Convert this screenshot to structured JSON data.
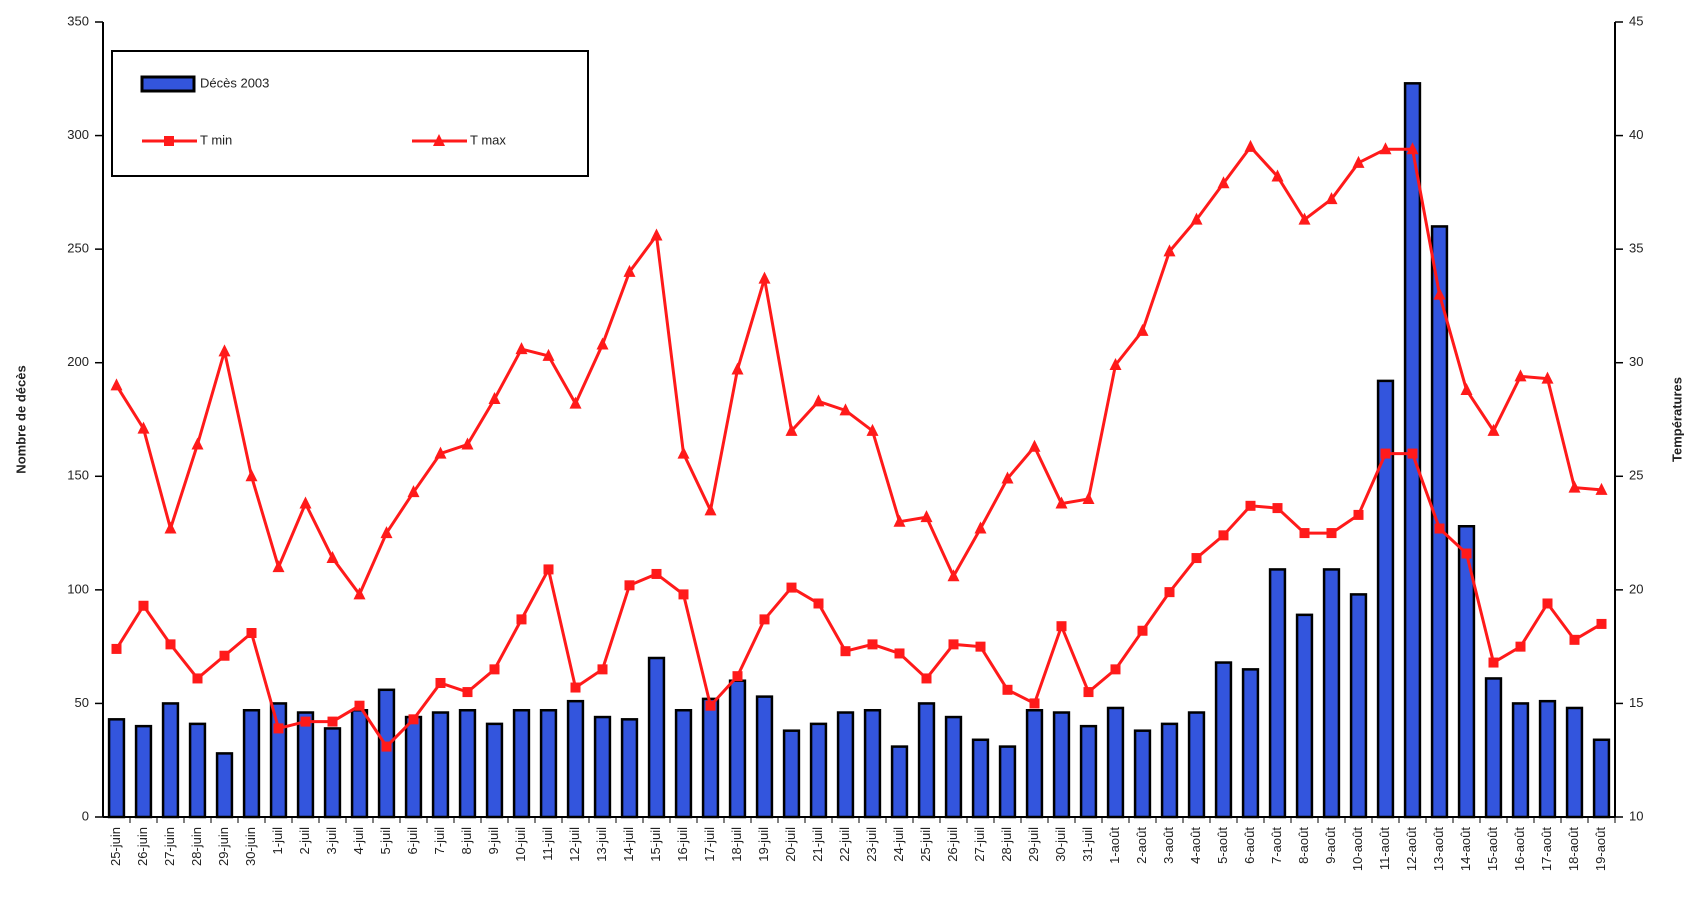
{
  "chart_data": {
    "type": "bar-line",
    "ylabel": "Nombre de décès",
    "y2label": "Températures",
    "categories": [
      "25-juin",
      "26-juin",
      "27-juin",
      "28-juin",
      "29-juin",
      "30-juin",
      "1-juil",
      "2-juil",
      "3-juil",
      "4-juil",
      "5-juil",
      "6-juil",
      "7-juil",
      "8-juil",
      "9-juil",
      "10-juil",
      "11-juil",
      "12-juil",
      "13-juil",
      "14-juil",
      "15-juil",
      "16-juil",
      "17-juil",
      "18-juil",
      "19-juil",
      "20-juil",
      "21-juil",
      "22-juil",
      "23-juil",
      "24-juil",
      "25-juil",
      "26-juil",
      "27-juil",
      "28-juil",
      "29-juil",
      "30-juil",
      "31-juil",
      "1-août",
      "2-août",
      "3-août",
      "4-août",
      "5-août",
      "6-août",
      "7-août",
      "8-août",
      "9-août",
      "10-août",
      "11-août",
      "12-août",
      "13-août",
      "14-août",
      "15-août",
      "16-août",
      "17-août",
      "18-août",
      "19-août"
    ],
    "series": [
      {
        "name": "Décès 2003",
        "type": "bar",
        "color": "#3355dd",
        "values": [
          43,
          40,
          50,
          41,
          28,
          47,
          50,
          46,
          39,
          47,
          56,
          44,
          46,
          47,
          41,
          47,
          47,
          51,
          44,
          43,
          70,
          47,
          52,
          60,
          53,
          38,
          41,
          46,
          47,
          31,
          50,
          44,
          34,
          31,
          47,
          46,
          40,
          48,
          38,
          41,
          46,
          68,
          65,
          109,
          89,
          109,
          98,
          192,
          323,
          260,
          128,
          61,
          50,
          51,
          48,
          34
        ]
      },
      {
        "name": "T min",
        "type": "line",
        "marker": "square",
        "axis": "y2",
        "color": "#ff1a1a",
        "values": [
          17.4,
          19.3,
          17.6,
          16.1,
          17.1,
          18.1,
          13.9,
          14.2,
          14.2,
          14.9,
          13.1,
          14.3,
          15.9,
          15.5,
          16.5,
          18.7,
          20.9,
          15.7,
          16.5,
          20.2,
          20.7,
          19.8,
          14.9,
          16.2,
          18.7,
          20.1,
          19.4,
          17.3,
          17.6,
          17.2,
          16.1,
          17.6,
          17.5,
          15.6,
          15.0,
          18.4,
          15.5,
          16.5,
          18.2,
          19.9,
          21.4,
          22.4,
          23.7,
          23.6,
          22.5,
          22.5,
          23.3,
          26.0,
          26.0,
          22.7,
          21.6,
          16.8,
          17.5,
          19.4,
          17.8,
          18.5
        ]
      },
      {
        "name": "T max",
        "type": "line",
        "marker": "triangle",
        "axis": "y2",
        "color": "#ff1a1a",
        "values": [
          29.0,
          27.1,
          22.7,
          26.4,
          30.5,
          25.0,
          21.0,
          23.8,
          21.4,
          19.8,
          22.5,
          24.3,
          26.0,
          26.4,
          28.4,
          30.6,
          30.3,
          28.2,
          30.8,
          34.0,
          35.6,
          26.0,
          23.5,
          29.7,
          33.7,
          27.0,
          28.3,
          27.9,
          27.0,
          23.0,
          23.2,
          20.6,
          22.7,
          24.9,
          26.3,
          23.8,
          24.0,
          29.9,
          31.4,
          34.9,
          36.3,
          37.9,
          39.5,
          38.2,
          36.3,
          37.2,
          38.8,
          39.4,
          39.4,
          33.0,
          28.8,
          27.0,
          29.4,
          29.3,
          24.5,
          24.4
        ]
      }
    ],
    "ylim": [
      0,
      350
    ],
    "yticks": [
      0,
      50,
      100,
      150,
      200,
      250,
      300,
      350
    ],
    "y2lim": [
      10,
      45
    ],
    "y2ticks": [
      10,
      15,
      20,
      25,
      30,
      35,
      40,
      45
    ],
    "legend": "upper left"
  }
}
